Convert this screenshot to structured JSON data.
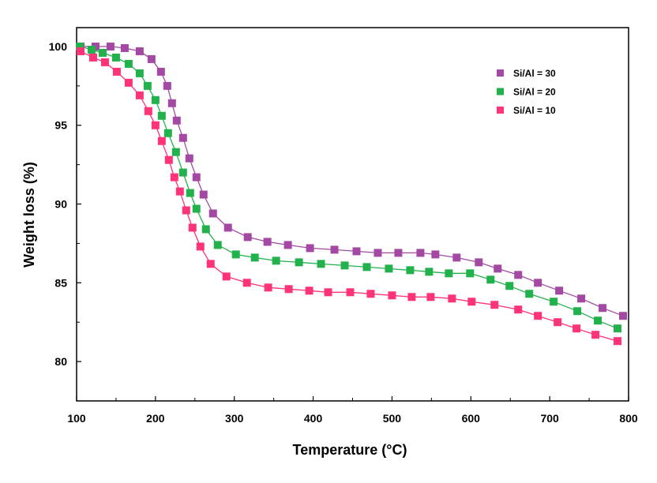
{
  "chart_data": {
    "type": "line",
    "title": "",
    "xlabel": "Temperature (°C)",
    "ylabel": "Weight loss (%)",
    "xlim": [
      100,
      800
    ],
    "ylim": [
      77.5,
      101.2
    ],
    "xticks": [
      100,
      200,
      300,
      400,
      500,
      600,
      700,
      800
    ],
    "yticks": [
      80,
      85,
      90,
      95,
      100
    ],
    "grid": false,
    "legend_position": "top-right",
    "markers": "square",
    "series": [
      {
        "name": "Si/Al = 30",
        "color": "#A349A4",
        "x": [
          105,
          124,
          143,
          161,
          180,
          195,
          207,
          215,
          221,
          227,
          235,
          243,
          252,
          261,
          273,
          292,
          317,
          342,
          368,
          396,
          427,
          455,
          482,
          508,
          536,
          555,
          582,
          610,
          634,
          660,
          685,
          712,
          740,
          767,
          793
        ],
        "y": [
          100.0,
          100.0,
          100.0,
          99.9,
          99.7,
          99.2,
          98.4,
          97.5,
          96.4,
          95.3,
          94.2,
          92.9,
          91.7,
          90.6,
          89.4,
          88.5,
          87.9,
          87.6,
          87.4,
          87.2,
          87.1,
          87.0,
          86.9,
          86.9,
          86.9,
          86.8,
          86.6,
          86.3,
          85.9,
          85.5,
          85.0,
          84.5,
          84.0,
          83.4,
          82.9
        ]
      },
      {
        "name": "Si/Al = 20",
        "color": "#22B14C",
        "x": [
          104,
          119,
          133,
          150,
          166,
          180,
          190,
          200,
          208,
          216,
          226,
          235,
          244,
          252,
          264,
          279,
          302,
          326,
          353,
          382,
          410,
          440,
          468,
          496,
          523,
          547,
          572,
          599,
          625,
          649,
          674,
          705,
          735,
          761,
          786
        ],
        "y": [
          100.0,
          99.8,
          99.6,
          99.3,
          98.9,
          98.3,
          97.5,
          96.6,
          95.6,
          94.5,
          93.3,
          92.0,
          90.7,
          89.7,
          88.4,
          87.4,
          86.8,
          86.6,
          86.4,
          86.3,
          86.2,
          86.1,
          86.0,
          85.9,
          85.8,
          85.7,
          85.6,
          85.6,
          85.2,
          84.8,
          84.3,
          83.8,
          83.2,
          82.6,
          82.1
        ]
      },
      {
        "name": "Si/Al = 10",
        "color": "#FF3377",
        "x": [
          105,
          121,
          136,
          151,
          166,
          180,
          191,
          200,
          208,
          217,
          224,
          231,
          239,
          247,
          257,
          270,
          290,
          316,
          343,
          369,
          395,
          419,
          447,
          473,
          500,
          525,
          549,
          576,
          601,
          630,
          660,
          685,
          710,
          734,
          758,
          786
        ],
        "y": [
          99.7,
          99.3,
          99.0,
          98.4,
          97.7,
          96.9,
          95.9,
          95.0,
          94.0,
          92.8,
          91.7,
          90.8,
          89.6,
          88.5,
          87.3,
          86.2,
          85.4,
          85.0,
          84.7,
          84.6,
          84.5,
          84.4,
          84.4,
          84.3,
          84.2,
          84.1,
          84.1,
          84.0,
          83.8,
          83.6,
          83.3,
          82.9,
          82.5,
          82.1,
          81.7,
          81.3
        ]
      }
    ]
  }
}
